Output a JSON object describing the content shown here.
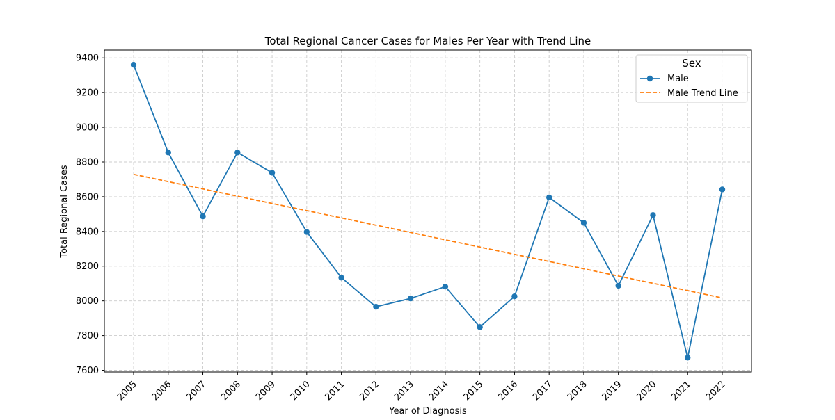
{
  "chart_data": {
    "type": "line",
    "title": "Total Regional Cancer Cases for Males Per Year with Trend Line",
    "xlabel": "Year of Diagnosis",
    "ylabel": "Total Regional Cases",
    "x": [
      "2005",
      "2006",
      "2007",
      "2008",
      "2009",
      "2010",
      "2011",
      "2012",
      "2013",
      "2014",
      "2015",
      "2016",
      "2017",
      "2018",
      "2019",
      "2020",
      "2021",
      "2022"
    ],
    "series": [
      {
        "name": "Male",
        "style": "solid-with-markers",
        "color": "#1f77b4",
        "values": [
          9360,
          8855,
          8487,
          8855,
          8738,
          8397,
          8134,
          7966,
          8014,
          8082,
          7849,
          8026,
          8596,
          8450,
          8087,
          8494,
          7673,
          8642
        ]
      },
      {
        "name": "Male Trend Line",
        "style": "dashed",
        "color": "#ff7f0e",
        "values": [
          8729,
          8687,
          8645,
          8603,
          8561,
          8520,
          8478,
          8436,
          8394,
          8352,
          8310,
          8268,
          8227,
          8185,
          8143,
          8101,
          8059,
          8017
        ]
      }
    ],
    "yticks": [
      7600,
      7800,
      8000,
      8200,
      8400,
      8600,
      8800,
      9000,
      9200,
      9400
    ],
    "ylim": [
      7590,
      9445
    ],
    "grid": true,
    "legend": {
      "title": "Sex",
      "position": "top-right"
    }
  }
}
